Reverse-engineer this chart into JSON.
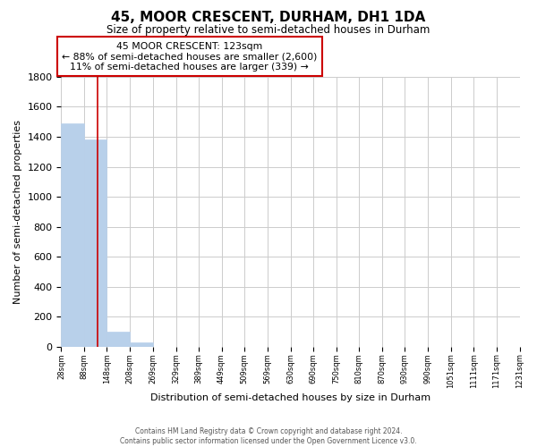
{
  "title": "45, MOOR CRESCENT, DURHAM, DH1 1DA",
  "subtitle": "Size of property relative to semi-detached houses in Durham",
  "xlabel": "Distribution of semi-detached houses by size in Durham",
  "ylabel": "Number of semi-detached properties",
  "bar_edges": [
    28,
    88,
    148,
    208,
    269,
    329,
    389,
    449,
    509,
    569,
    630,
    690,
    750,
    810,
    870,
    930,
    990,
    1051,
    1111,
    1171,
    1231
  ],
  "bar_heights": [
    1490,
    1380,
    100,
    30,
    0,
    0,
    0,
    0,
    0,
    0,
    0,
    0,
    0,
    0,
    0,
    0,
    0,
    0,
    0,
    0
  ],
  "bar_color": "#b8d0ea",
  "bar_edgecolor": "#b8d0ea",
  "property_size": 123,
  "property_line_color": "#cc0000",
  "ylim": [
    0,
    1800
  ],
  "yticks": [
    0,
    200,
    400,
    600,
    800,
    1000,
    1200,
    1400,
    1600,
    1800
  ],
  "grid_color": "#cccccc",
  "background_color": "#ffffff",
  "annotation_title": "45 MOOR CRESCENT: 123sqm",
  "annotation_line1": "← 88% of semi-detached houses are smaller (2,600)",
  "annotation_line2": "11% of semi-detached houses are larger (339) →",
  "annotation_box_color": "#ffffff",
  "annotation_box_edgecolor": "#cc0000",
  "footer_line1": "Contains HM Land Registry data © Crown copyright and database right 2024.",
  "footer_line2": "Contains public sector information licensed under the Open Government Licence v3.0.",
  "tick_labels": [
    "28sqm",
    "88sqm",
    "148sqm",
    "208sqm",
    "269sqm",
    "329sqm",
    "389sqm",
    "449sqm",
    "509sqm",
    "569sqm",
    "630sqm",
    "690sqm",
    "750sqm",
    "810sqm",
    "870sqm",
    "930sqm",
    "990sqm",
    "1051sqm",
    "1111sqm",
    "1171sqm",
    "1231sqm"
  ]
}
